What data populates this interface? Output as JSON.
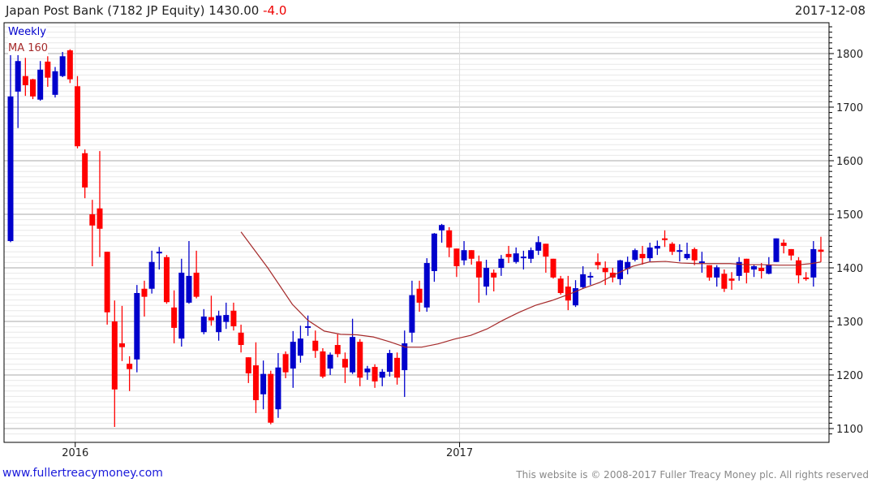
{
  "header": {
    "name": "Japan Post Bank (7182 JP Equity)",
    "last": "1430.00",
    "change": "-4.0",
    "date": "2017-12-08"
  },
  "footer": {
    "site": "www.fullertreacymoney.com",
    "copyright": "This website is © 2008-2017 Fuller Treacy Money plc. All rights reserved"
  },
  "colors": {
    "up": "#0000cc",
    "down": "#ff0000",
    "ma": "#a52a2a"
  },
  "chart_data": {
    "type": "candlestick",
    "title": "Japan Post Bank (7182 JP Equity) 1430.00 -4.0",
    "legend": [
      "Weekly",
      "MA 160"
    ],
    "legend_placement": "top-left",
    "ylim": [
      1080,
      1855
    ],
    "yticks": [
      1100,
      1200,
      1300,
      1400,
      1500,
      1600,
      1700,
      1800
    ],
    "xticks": [
      {
        "label": "2016",
        "index": 8.7
      },
      {
        "label": "2017",
        "index": 60.4
      }
    ],
    "grid": true,
    "ohlc": [
      [
        1450,
        1797,
        1448,
        1720
      ],
      [
        1729,
        1797,
        1661,
        1786
      ],
      [
        1758,
        1792,
        1721,
        1741
      ],
      [
        1752,
        1753,
        1715,
        1720
      ],
      [
        1714,
        1786,
        1712,
        1770
      ],
      [
        1785,
        1795,
        1738,
        1755
      ],
      [
        1723,
        1775,
        1718,
        1767
      ],
      [
        1758,
        1803,
        1756,
        1795
      ],
      [
        1806,
        1808,
        1745,
        1752
      ],
      [
        1739,
        1758,
        1623,
        1627
      ],
      [
        1614,
        1621,
        1530,
        1550
      ],
      [
        1500,
        1527,
        1403,
        1479
      ],
      [
        1511,
        1618,
        1420,
        1473
      ],
      [
        1430,
        1430,
        1294,
        1317
      ],
      [
        1300,
        1339,
        1103,
        1173
      ],
      [
        1259,
        1329,
        1226,
        1252
      ],
      [
        1221,
        1235,
        1170,
        1211
      ],
      [
        1229,
        1368,
        1205,
        1353
      ],
      [
        1361,
        1376,
        1309,
        1346
      ],
      [
        1361,
        1432,
        1352,
        1411
      ],
      [
        1428,
        1439,
        1397,
        1430
      ],
      [
        1420,
        1424,
        1333,
        1336
      ],
      [
        1326,
        1358,
        1259,
        1288
      ],
      [
        1268,
        1417,
        1253,
        1391
      ],
      [
        1335,
        1450,
        1333,
        1385
      ],
      [
        1391,
        1432,
        1343,
        1346
      ],
      [
        1280,
        1323,
        1276,
        1309
      ],
      [
        1308,
        1348,
        1292,
        1302
      ],
      [
        1280,
        1320,
        1264,
        1311
      ],
      [
        1299,
        1335,
        1286,
        1312
      ],
      [
        1320,
        1335,
        1283,
        1291
      ],
      [
        1279,
        1294,
        1242,
        1256
      ],
      [
        1233,
        1233,
        1185,
        1203
      ],
      [
        1218,
        1261,
        1129,
        1153
      ],
      [
        1164,
        1227,
        1136,
        1202
      ],
      [
        1202,
        1208,
        1108,
        1111
      ],
      [
        1136,
        1241,
        1120,
        1214
      ],
      [
        1239,
        1244,
        1194,
        1205
      ],
      [
        1212,
        1282,
        1176,
        1262
      ],
      [
        1236,
        1292,
        1223,
        1268
      ],
      [
        1289,
        1311,
        1273,
        1291
      ],
      [
        1264,
        1283,
        1232,
        1245
      ],
      [
        1244,
        1250,
        1194,
        1197
      ],
      [
        1212,
        1242,
        1200,
        1238
      ],
      [
        1256,
        1276,
        1233,
        1239
      ],
      [
        1230,
        1242,
        1185,
        1214
      ],
      [
        1205,
        1305,
        1202,
        1271
      ],
      [
        1262,
        1267,
        1179,
        1195
      ],
      [
        1205,
        1217,
        1191,
        1212
      ],
      [
        1215,
        1220,
        1176,
        1188
      ],
      [
        1195,
        1211,
        1179,
        1206
      ],
      [
        1206,
        1247,
        1197,
        1241
      ],
      [
        1232,
        1242,
        1182,
        1195
      ],
      [
        1209,
        1283,
        1159,
        1259
      ],
      [
        1279,
        1376,
        1261,
        1349
      ],
      [
        1361,
        1376,
        1318,
        1335
      ],
      [
        1326,
        1418,
        1318,
        1409
      ],
      [
        1394,
        1465,
        1374,
        1464
      ],
      [
        1470,
        1482,
        1447,
        1480
      ],
      [
        1470,
        1476,
        1420,
        1438
      ],
      [
        1436,
        1436,
        1383,
        1403
      ],
      [
        1414,
        1450,
        1405,
        1433
      ],
      [
        1433,
        1433,
        1406,
        1417
      ],
      [
        1412,
        1423,
        1335,
        1382
      ],
      [
        1365,
        1415,
        1349,
        1400
      ],
      [
        1391,
        1397,
        1356,
        1382
      ],
      [
        1400,
        1424,
        1385,
        1417
      ],
      [
        1426,
        1441,
        1409,
        1420
      ],
      [
        1411,
        1438,
        1408,
        1427
      ],
      [
        1418,
        1432,
        1397,
        1421
      ],
      [
        1417,
        1438,
        1409,
        1433
      ],
      [
        1432,
        1459,
        1424,
        1448
      ],
      [
        1445,
        1445,
        1391,
        1421
      ],
      [
        1417,
        1417,
        1380,
        1382
      ],
      [
        1380,
        1385,
        1350,
        1353
      ],
      [
        1365,
        1385,
        1321,
        1339
      ],
      [
        1330,
        1377,
        1327,
        1362
      ],
      [
        1364,
        1403,
        1362,
        1388
      ],
      [
        1382,
        1392,
        1368,
        1385
      ],
      [
        1411,
        1427,
        1397,
        1405
      ],
      [
        1400,
        1412,
        1368,
        1392
      ],
      [
        1391,
        1400,
        1373,
        1382
      ],
      [
        1379,
        1415,
        1368,
        1414
      ],
      [
        1398,
        1421,
        1388,
        1411
      ],
      [
        1415,
        1436,
        1412,
        1433
      ],
      [
        1426,
        1441,
        1406,
        1418
      ],
      [
        1418,
        1447,
        1412,
        1438
      ],
      [
        1436,
        1451,
        1424,
        1441
      ],
      [
        1455,
        1470,
        1439,
        1453
      ],
      [
        1445,
        1448,
        1424,
        1430
      ],
      [
        1432,
        1444,
        1412,
        1433
      ],
      [
        1418,
        1447,
        1415,
        1426
      ],
      [
        1435,
        1438,
        1405,
        1414
      ],
      [
        1411,
        1430,
        1391,
        1412
      ],
      [
        1405,
        1405,
        1376,
        1382
      ],
      [
        1382,
        1405,
        1365,
        1401
      ],
      [
        1389,
        1397,
        1355,
        1361
      ],
      [
        1380,
        1392,
        1359,
        1376
      ],
      [
        1385,
        1420,
        1376,
        1411
      ],
      [
        1417,
        1417,
        1371,
        1391
      ],
      [
        1397,
        1406,
        1383,
        1403
      ],
      [
        1400,
        1409,
        1380,
        1394
      ],
      [
        1389,
        1420,
        1388,
        1406
      ],
      [
        1411,
        1455,
        1411,
        1455
      ],
      [
        1447,
        1453,
        1427,
        1441
      ],
      [
        1435,
        1435,
        1414,
        1423
      ],
      [
        1414,
        1420,
        1371,
        1386
      ],
      [
        1382,
        1392,
        1376,
        1379
      ],
      [
        1382,
        1450,
        1365,
        1435
      ],
      [
        1434,
        1458,
        1411,
        1430
      ]
    ],
    "ma160": [
      [
        31,
        1467
      ],
      [
        34.6,
        1400
      ],
      [
        37.9,
        1332
      ],
      [
        40,
        1302
      ],
      [
        42.2,
        1282
      ],
      [
        44.4,
        1276
      ],
      [
        46.6,
        1275
      ],
      [
        48.8,
        1271
      ],
      [
        51,
        1262
      ],
      [
        53.1,
        1252
      ],
      [
        55.3,
        1252
      ],
      [
        57.5,
        1258
      ],
      [
        59.7,
        1267
      ],
      [
        61.9,
        1274
      ],
      [
        64.1,
        1286
      ],
      [
        66.2,
        1302
      ],
      [
        68.4,
        1317
      ],
      [
        70.6,
        1330
      ],
      [
        72.8,
        1339
      ],
      [
        75,
        1350
      ],
      [
        77.1,
        1362
      ],
      [
        79.3,
        1373
      ],
      [
        81.5,
        1389
      ],
      [
        83.7,
        1403
      ],
      [
        85.9,
        1411
      ],
      [
        88.1,
        1412
      ],
      [
        90.2,
        1409
      ],
      [
        92.4,
        1408
      ],
      [
        94.6,
        1408
      ],
      [
        96.8,
        1408
      ],
      [
        99,
        1406
      ],
      [
        101.2,
        1406
      ],
      [
        103.3,
        1405
      ],
      [
        105.5,
        1405
      ],
      [
        107.7,
        1408
      ],
      [
        109,
        1411
      ]
    ]
  }
}
